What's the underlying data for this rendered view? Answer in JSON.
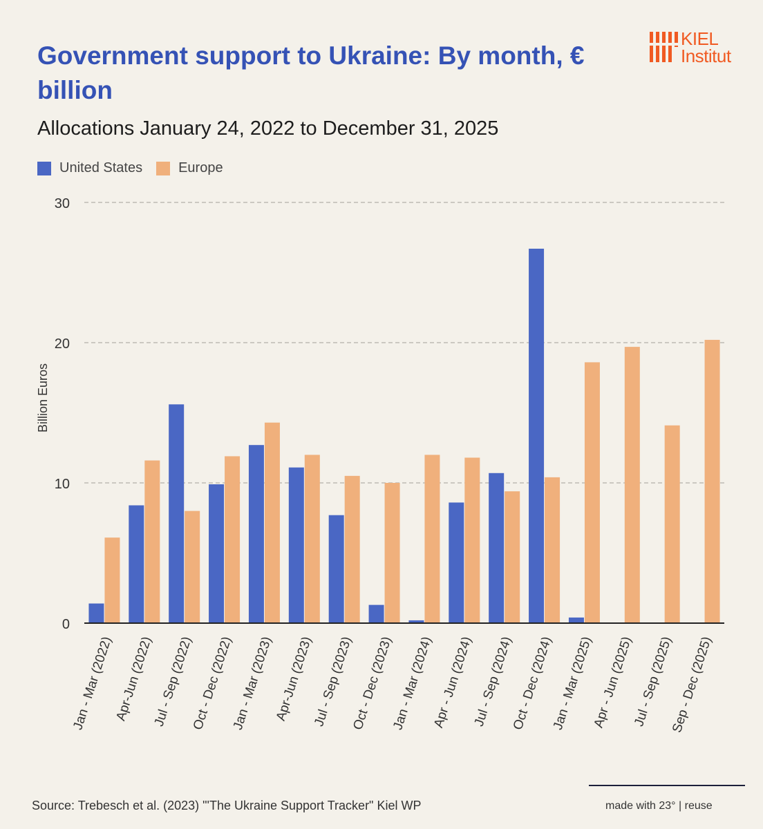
{
  "chart_data": {
    "type": "bar",
    "title": "Government support to Ukraine: By month, € billion",
    "subtitle": "Allocations January 24, 2022 to December 31, 2025",
    "ylabel": "Billion Euros",
    "xlabel": "",
    "ylim": [
      0,
      30
    ],
    "yticks": [
      0,
      10,
      20,
      30
    ],
    "grid": true,
    "legend_position": "top-left",
    "categories": [
      "Jan - Mar (2022)",
      "Apr-Jun (2022)",
      "Jul - Sep (2022)",
      "Oct - Dec (2022)",
      "Jan - Mar (2023)",
      "Apr-Jun (2023)",
      "Jul - Sep (2023)",
      "Oct - Dec (2023)",
      "Jan - Mar (2024)",
      "Apr - Jun (2024)",
      "Jul - Sep (2024)",
      "Oct - Dec (2024)",
      "Jan - Mar (2025)",
      "Apr - Jun (2025)",
      "Jul - Sep (2025)",
      "Sep - Dec (2025)"
    ],
    "series": [
      {
        "name": "United States",
        "color": "#4a67c4",
        "values": [
          1.4,
          8.4,
          15.6,
          9.9,
          12.7,
          11.1,
          7.7,
          1.3,
          0.2,
          8.6,
          10.7,
          26.7,
          0.4,
          0,
          0,
          0
        ]
      },
      {
        "name": "Europe",
        "color": "#f0b07c",
        "values": [
          6.1,
          11.6,
          8.0,
          11.9,
          14.3,
          12.0,
          10.5,
          10.0,
          12.0,
          11.8,
          9.4,
          10.4,
          18.6,
          19.7,
          14.1,
          20.2
        ]
      }
    ]
  },
  "logo": {
    "line1": "KIEL",
    "line2": "Institut",
    "color": "#f05a22"
  },
  "footer": {
    "source": "Source: Trebesch et al. (2023) \"'The Ukraine Support Tracker\" Kiel WP",
    "credit": "made with 23° | reuse"
  }
}
